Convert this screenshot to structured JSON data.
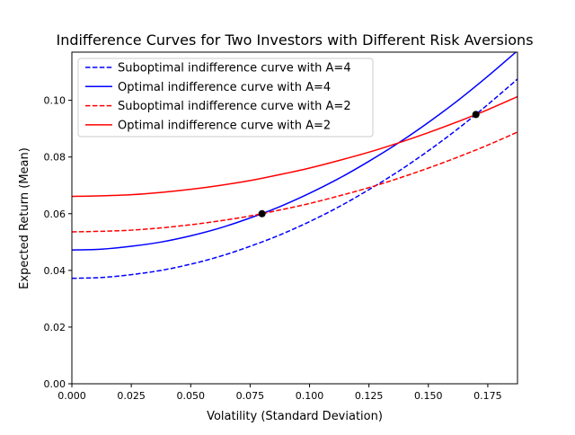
{
  "chart_data": {
    "type": "line",
    "title": "Indifference Curves for Two Investors with Different Risk Aversions",
    "xlabel": "Volatility (Standard Deviation)",
    "ylabel": "Expected Return (Mean)",
    "xlim": [
      0,
      0.1875
    ],
    "ylim": [
      0,
      0.117
    ],
    "xticks": [
      "0.000",
      "0.025",
      "0.050",
      "0.075",
      "0.100",
      "0.125",
      "0.150",
      "0.175"
    ],
    "yticks": [
      "0.00",
      "0.02",
      "0.04",
      "0.06",
      "0.08",
      "0.10"
    ],
    "grid": false,
    "legend_position": "top-left",
    "x": [
      0,
      0.0125,
      0.025,
      0.0375,
      0.05,
      0.0625,
      0.075,
      0.0875,
      0.1,
      0.1125,
      0.125,
      0.1375,
      0.15,
      0.1625,
      0.175,
      0.1875
    ],
    "series": [
      {
        "name": "Suboptimal indifference curve with A=4",
        "color": "#0000ff",
        "style": "dashed",
        "values": [
          0.0372,
          0.0375,
          0.0385,
          0.04,
          0.0422,
          0.045,
          0.0485,
          0.0525,
          0.0572,
          0.0625,
          0.0685,
          0.075,
          0.0822,
          0.09,
          0.0985,
          0.1075
        ]
      },
      {
        "name": "Optimal indifference curve with A=4",
        "color": "#0000ff",
        "style": "solid",
        "values": [
          0.0472,
          0.0475,
          0.0485,
          0.05,
          0.0522,
          0.055,
          0.0585,
          0.0625,
          0.0672,
          0.0725,
          0.0785,
          0.085,
          0.0922,
          0.1,
          0.1085,
          0.1175
        ]
      },
      {
        "name": "Suboptimal indifference curve with A=2",
        "color": "#ff0000",
        "style": "dashed",
        "values": [
          0.0536,
          0.0538,
          0.0542,
          0.055,
          0.0561,
          0.0575,
          0.0592,
          0.0613,
          0.0636,
          0.0663,
          0.0692,
          0.0725,
          0.0761,
          0.08,
          0.0842,
          0.0888
        ]
      },
      {
        "name": "Optimal indifference curve with A=2",
        "color": "#ff0000",
        "style": "solid",
        "values": [
          0.0661,
          0.0663,
          0.0667,
          0.0675,
          0.0686,
          0.07,
          0.0717,
          0.0738,
          0.0761,
          0.0788,
          0.0817,
          0.085,
          0.0886,
          0.0925,
          0.0967,
          0.1013
        ]
      }
    ],
    "points": [
      {
        "x": 0.08,
        "y": 0.06,
        "color": "#000000"
      },
      {
        "x": 0.17,
        "y": 0.095,
        "color": "#000000"
      }
    ]
  }
}
